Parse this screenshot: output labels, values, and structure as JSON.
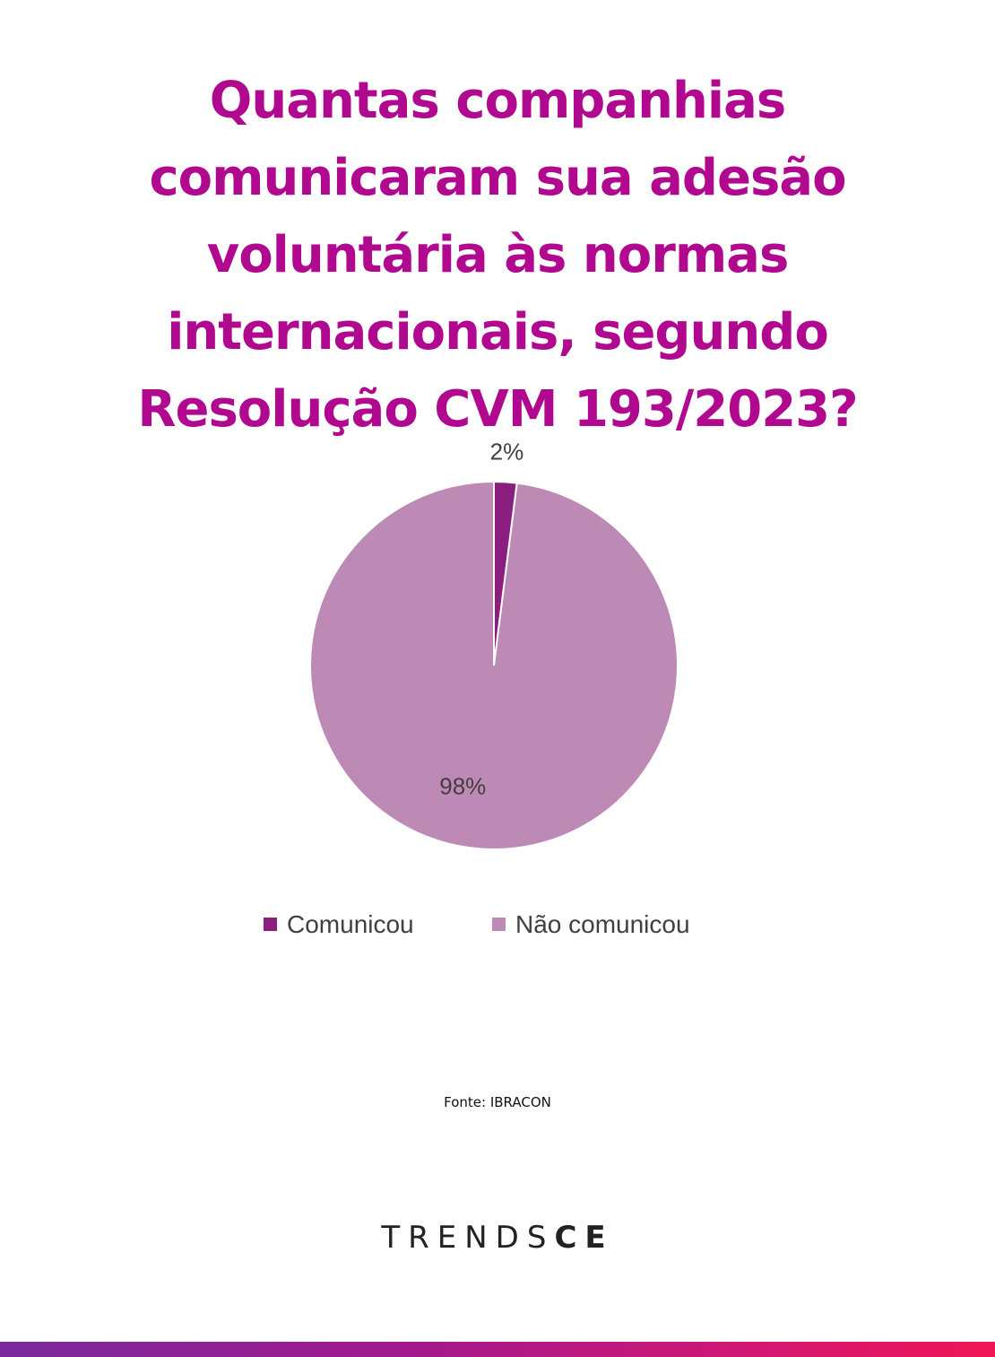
{
  "title": "Quantas companhias comunicaram sua adesão voluntária às normas internacionais, segundo Resolução CVM 193/2023?",
  "chart_data": {
    "type": "pie",
    "categories": [
      "Comunicou",
      "Não comunicou"
    ],
    "values": [
      2,
      98
    ],
    "data_labels": [
      "2%",
      "98%"
    ],
    "colors": [
      "#8a1f7e",
      "#bd89b5"
    ],
    "legend_position": "bottom"
  },
  "source": "Fonte: IBRACON",
  "logo": {
    "light": "TRENDS",
    "bold": "CE"
  },
  "colors": {
    "title": "#b0088f",
    "bar_start": "#7a2a9c",
    "bar_end": "#f01656"
  }
}
